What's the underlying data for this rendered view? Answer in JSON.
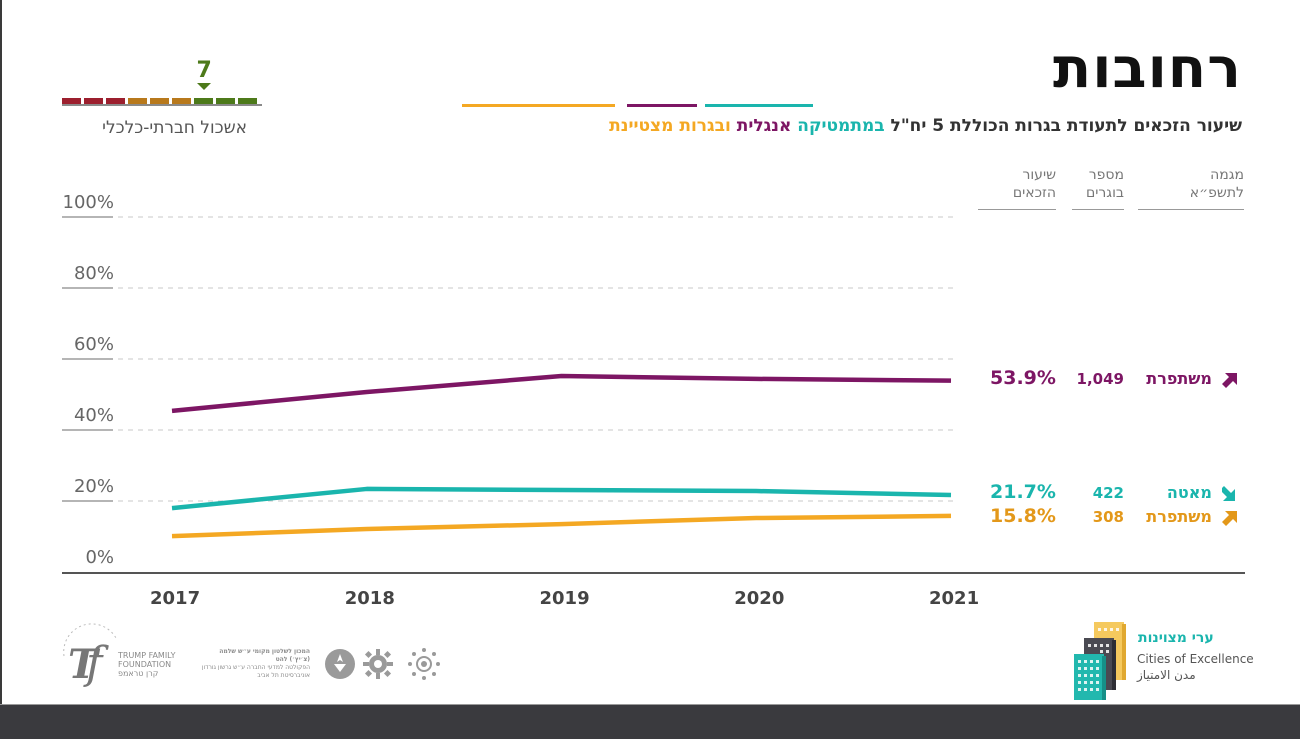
{
  "header": {
    "city": "רחובות",
    "subtitle_prefix": "שיעור הזכאים לתעודת בגרות הכוללת 5 יח\"ל ",
    "subtitle_math": "במתמטיקה",
    "subtitle_english": "אנגלית",
    "subtitle_excellence": "ובגרות מצטיינת"
  },
  "cluster": {
    "value": "7",
    "value_num": 7,
    "total_segments": 9,
    "label": "אשכול חברתי-כלכלי",
    "colors": [
      "#9c1f2e",
      "#9c1f2e",
      "#9c1f2e",
      "#b8791c",
      "#b8791c",
      "#b8791c",
      "#4d7a1a",
      "#4d7a1a",
      "#4d7a1a"
    ]
  },
  "table_headers": {
    "rate": [
      "שיעור",
      "הזכאים"
    ],
    "count": [
      "מספר",
      "בוגרים"
    ],
    "trend": [
      "מגמה",
      "לתשפ״א"
    ]
  },
  "colors": {
    "english": "#7d1664",
    "math": "#1ab5ad",
    "excellence": "#f4a823",
    "excellence_text": "#e3981a"
  },
  "rows": [
    {
      "series": "english",
      "rate": "53.9%",
      "count": "1,049",
      "trend": "משתפרת",
      "arrow": "up"
    },
    {
      "series": "math",
      "rate": "21.7%",
      "count": "422",
      "trend": "מאטה",
      "arrow": "down"
    },
    {
      "series": "excellence",
      "rate": "15.8%",
      "count": "308",
      "trend": "משתפרת",
      "arrow": "up"
    }
  ],
  "chart_data": {
    "type": "line",
    "title": "שיעור הזכאים לתעודת בגרות הכוללת 5 יח\"ל במתמטיקה אנגלית ובגרות מצטיינת",
    "xlabel": "",
    "ylabel": "",
    "x": [
      "2017",
      "2018",
      "2019",
      "2020",
      "2021"
    ],
    "ylim": [
      0,
      100
    ],
    "yticks": [
      "0%",
      "20%",
      "40%",
      "60%",
      "80%",
      "100%"
    ],
    "grid": true,
    "series": [
      {
        "name": "אנגלית",
        "key": "english",
        "values": [
          45.4,
          50.7,
          55.2,
          54.4,
          53.9
        ]
      },
      {
        "name": "במתמטיקה",
        "key": "math",
        "values": [
          18.0,
          23.4,
          23.1,
          22.8,
          21.7
        ]
      },
      {
        "name": "ובגרות מצטיינת",
        "key": "excellence",
        "values": [
          10.1,
          12.1,
          13.5,
          15.2,
          15.8
        ]
      }
    ]
  },
  "footer": {
    "tf_line1": "TRUMP FAMILY",
    "tf_line2": "FOUNDATION",
    "tf_line3": "קרן טראמפ",
    "tf_arc": "THE EDDIE & JULES",
    "tau_line1": "המכון לשלטון מקומי ע״ש שלמה (צ׳יץ׳) להט",
    "tau_line2": "הפקולטה למדעי החברה ע״ש גרשון גורדון",
    "tau_line3": "אוניברסיטת תל אביב",
    "coe_hebrew": "ערי מצוינות",
    "coe_english": "Cities of Excellence",
    "coe_arabic": "مدن الامتياز"
  }
}
